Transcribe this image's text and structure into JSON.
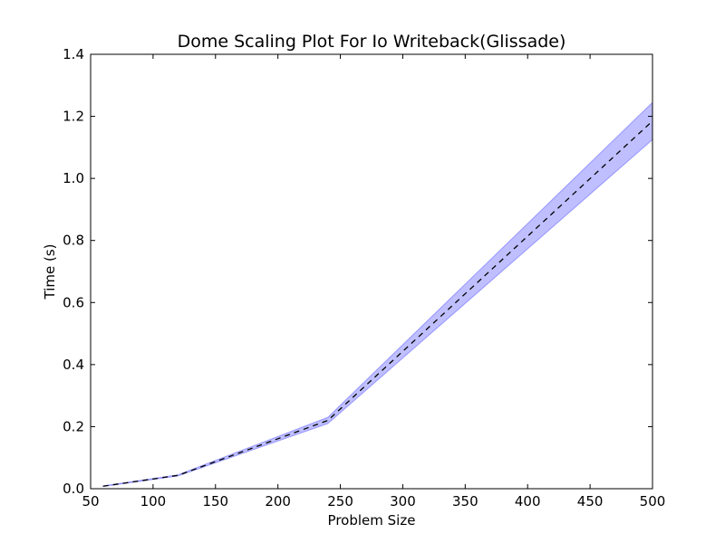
{
  "chart_data": {
    "type": "line",
    "title": "Dome  Scaling Plot For Io Writeback(Glissade)",
    "xlabel": "Problem Size",
    "ylabel": "Time (s)",
    "xlim": [
      50,
      500
    ],
    "ylim": [
      0.0,
      1.4
    ],
    "x_ticks": [
      50,
      100,
      150,
      200,
      250,
      300,
      350,
      400,
      450,
      500
    ],
    "y_ticks": [
      0.0,
      0.2,
      0.4,
      0.6,
      0.8,
      1.0,
      1.2,
      1.4
    ],
    "x_tick_labels": [
      "50",
      "100",
      "150",
      "200",
      "250",
      "300",
      "350",
      "400",
      "450",
      "500"
    ],
    "y_tick_labels": [
      "0.0",
      "0.2",
      "0.4",
      "0.6",
      "0.8",
      "1.0",
      "1.2",
      "1.4"
    ],
    "grid": false,
    "series": [
      {
        "x": [
          60,
          120,
          240,
          500
        ],
        "y": [
          0.008,
          0.043,
          0.22,
          1.185
        ],
        "band_lower": [
          0.007,
          0.041,
          0.21,
          1.125
        ],
        "band_upper": [
          0.009,
          0.045,
          0.23,
          1.245
        ],
        "line_color": "#000000",
        "line_style": "dashed",
        "band_color": "#0000ff"
      }
    ]
  }
}
